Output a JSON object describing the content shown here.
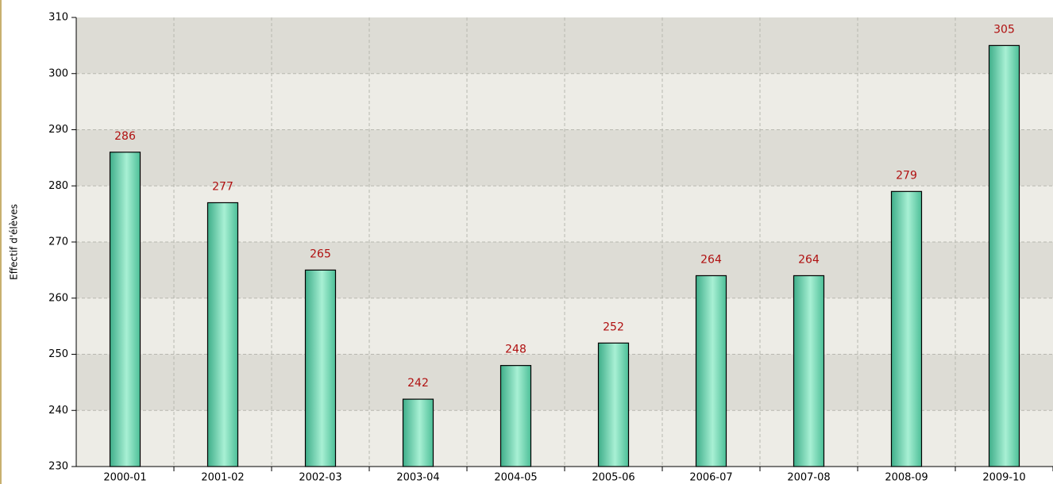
{
  "chart_data": {
    "type": "bar",
    "y_label": "Effectif d'élèves",
    "categories": [
      "2000-01",
      "2001-02",
      "2002-03",
      "2003-04",
      "2004-05",
      "2005-06",
      "2006-07",
      "2007-08",
      "2008-09",
      "2009-10"
    ],
    "values": [
      286,
      277,
      265,
      242,
      248,
      252,
      264,
      264,
      279,
      305
    ],
    "color": "#6fd6b0",
    "ylim": [
      230,
      310
    ],
    "yticks": [
      230,
      240,
      250,
      260,
      270,
      280,
      290,
      300,
      310
    ],
    "grid": true
  }
}
